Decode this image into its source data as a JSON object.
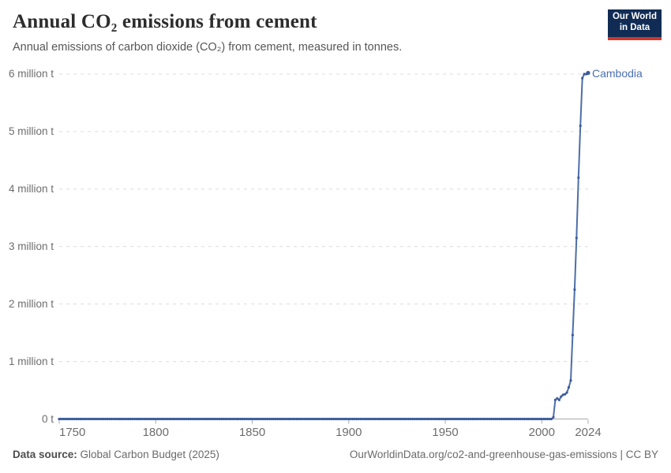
{
  "header": {
    "title": "Annual CO₂ emissions from cement",
    "subtitle": "Annual emissions of carbon dioxide (CO₂) from cement, measured in tonnes."
  },
  "logo": {
    "line1": "Our World",
    "line2": "in Data"
  },
  "footer": {
    "source_label": "Data source:",
    "source_value": " Global Carbon Budget (2025)",
    "link": "OurWorldinData.org/co2-and-greenhouse-gas-emissions | CC BY"
  },
  "colors": {
    "line": "#4c6ea8",
    "marker": "#3b5c99",
    "entity_label": "#4a6fb1",
    "gridline": "#dcdcdc",
    "axis": "#a9a9a9",
    "logo_navy": "#102c54",
    "logo_red": "#d1352b"
  },
  "chart_data": {
    "type": "line",
    "title": "Annual CO₂ emissions from cement",
    "subtitle": "Annual emissions of carbon dioxide (CO₂) from cement, measured in tonnes.",
    "unit": "tonnes",
    "grid": "horizontal dashed gridlines",
    "legend_position": "entity label at end of line",
    "xlim": [
      1750,
      2024
    ],
    "ylim": [
      0,
      6000000
    ],
    "x_ticks": [
      1750,
      1800,
      1850,
      1900,
      1950,
      2000,
      2024
    ],
    "y_ticks": [
      {
        "value": 0,
        "label": "0 t"
      },
      {
        "value": 1000000,
        "label": "1 million t"
      },
      {
        "value": 2000000,
        "label": "2 million t"
      },
      {
        "value": 3000000,
        "label": "3 million t"
      },
      {
        "value": 4000000,
        "label": "4 million t"
      },
      {
        "value": 5000000,
        "label": "5 million t"
      },
      {
        "value": 6000000,
        "label": "6 million t"
      }
    ],
    "series": [
      {
        "name": "Cambodia",
        "points": [
          [
            1750,
            0
          ],
          [
            2005,
            0
          ],
          [
            2006,
            30000
          ],
          [
            2007,
            330000
          ],
          [
            2008,
            360000
          ],
          [
            2009,
            330000
          ],
          [
            2010,
            390000
          ],
          [
            2011,
            420000
          ],
          [
            2012,
            430000
          ],
          [
            2013,
            460000
          ],
          [
            2014,
            550000
          ],
          [
            2015,
            670000
          ],
          [
            2016,
            1460000
          ],
          [
            2017,
            2250000
          ],
          [
            2018,
            3150000
          ],
          [
            2019,
            4200000
          ],
          [
            2020,
            5100000
          ],
          [
            2021,
            5930000
          ],
          [
            2022,
            6000000
          ],
          [
            2023,
            6000000
          ],
          [
            2024,
            6020000
          ]
        ]
      }
    ]
  }
}
